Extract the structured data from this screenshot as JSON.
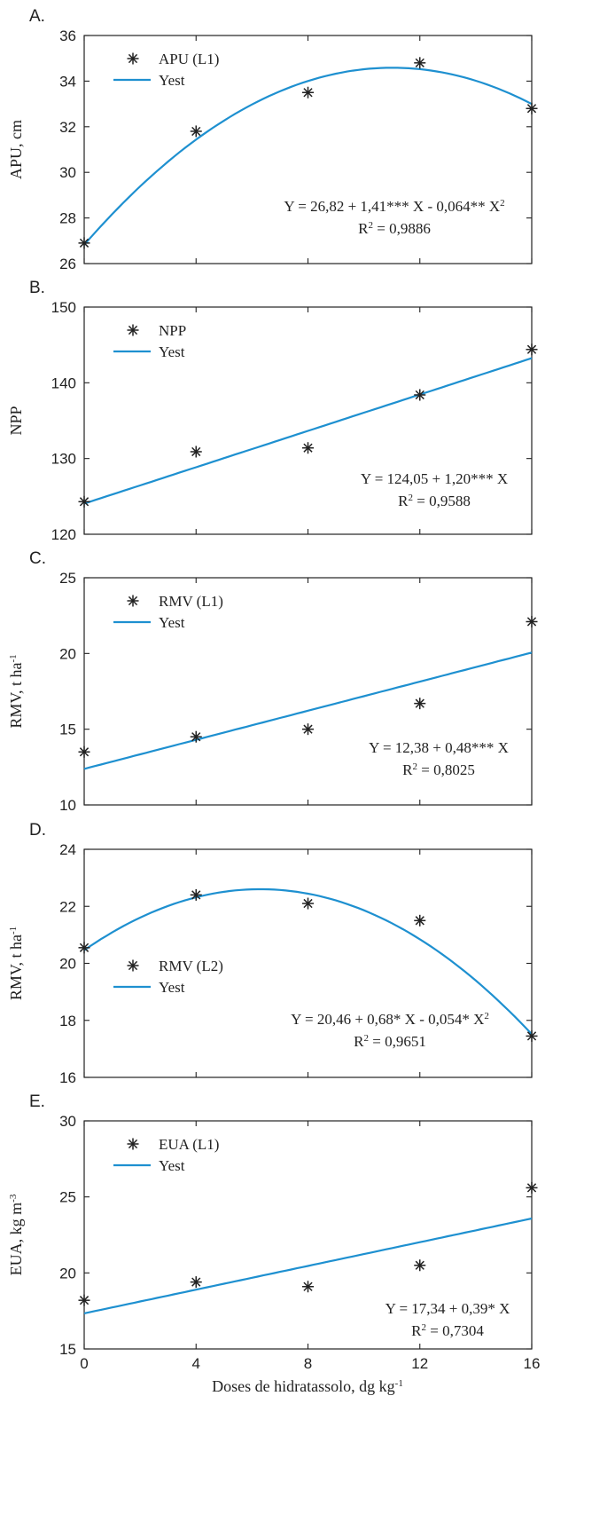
{
  "xlabel": "Doses de hidratassolo, dg kg",
  "xlabel_sup": "-1",
  "x_ticks": [
    "0",
    "4",
    "8",
    "12",
    "16"
  ],
  "colors": {
    "fit_line": "#1e90d0",
    "markers": "#222222"
  },
  "chart_data": [
    {
      "type": "scatter",
      "panel": "A.",
      "ylabel": "APU, cm",
      "ylabel_sup": "",
      "ylim": [
        26,
        36
      ],
      "y_ticks": [
        26,
        28,
        30,
        32,
        34,
        36
      ],
      "x": [
        0,
        4,
        8,
        12,
        16
      ],
      "y": [
        26.9,
        31.8,
        33.5,
        34.8,
        32.8
      ],
      "fit": {
        "type": "quadratic",
        "coef": [
          26.82,
          1.41,
          -0.064
        ]
      },
      "legend": {
        "marker_label": "APU (L1)",
        "line_label": "Yest",
        "placement": "top-left"
      },
      "equation": {
        "line1_a": "Y = 26,82 + 1,41*** X - 0,064** X",
        "line1_sup": "2",
        "line2_a": "R",
        "line2_sup": "2",
        "line2_b": " = 0,9886"
      }
    },
    {
      "type": "scatter",
      "panel": "B.",
      "ylabel": "NPP",
      "ylabel_sup": "",
      "ylim": [
        120,
        150
      ],
      "y_ticks": [
        120,
        130,
        140,
        150
      ],
      "x": [
        0,
        4,
        8,
        12,
        16
      ],
      "y": [
        124.3,
        130.9,
        131.4,
        138.4,
        144.4
      ],
      "fit": {
        "type": "linear",
        "coef": [
          124.05,
          1.2
        ]
      },
      "legend": {
        "marker_label": "NPP",
        "line_label": "Yest",
        "placement": "top-left"
      },
      "equation": {
        "line1_a": "Y = 124,05 + 1,20*** X",
        "line1_sup": "",
        "line2_a": "R",
        "line2_sup": "2",
        "line2_b": " = 0,9588"
      }
    },
    {
      "type": "scatter",
      "panel": "C.",
      "ylabel": "RMV, t ha",
      "ylabel_sup": "-1",
      "ylim": [
        10,
        25
      ],
      "y_ticks": [
        10,
        15,
        20,
        25
      ],
      "x": [
        0,
        4,
        8,
        12,
        16
      ],
      "y": [
        13.5,
        14.5,
        15.0,
        16.7,
        22.1
      ],
      "fit": {
        "type": "linear",
        "coef": [
          12.38,
          0.48
        ]
      },
      "legend": {
        "marker_label": "RMV (L1)",
        "line_label": "Yest",
        "placement": "top-left"
      },
      "equation": {
        "line1_a": "Y = 12,38 + 0,48*** X",
        "line1_sup": "",
        "line2_a": "R",
        "line2_sup": "2",
        "line2_b": " = 0,8025"
      }
    },
    {
      "type": "scatter",
      "panel": "D.",
      "ylabel": "RMV, t ha",
      "ylabel_sup": "-1",
      "ylim": [
        16,
        24
      ],
      "y_ticks": [
        16,
        18,
        20,
        22,
        24
      ],
      "x": [
        0,
        4,
        8,
        12,
        16
      ],
      "y": [
        20.55,
        22.4,
        22.1,
        21.5,
        17.45
      ],
      "fit": {
        "type": "quadratic",
        "coef": [
          20.46,
          0.68,
          -0.054
        ]
      },
      "legend": {
        "marker_label": "RMV (L2)",
        "line_label": "Yest",
        "placement": "center-left"
      },
      "equation": {
        "line1_a": "Y = 20,46 + 0,68* X - 0,054* X",
        "line1_sup": "2",
        "line2_a": "R",
        "line2_sup": "2",
        "line2_b": " = 0,9651"
      }
    },
    {
      "type": "scatter",
      "panel": "E.",
      "ylabel": "EUA, kg m",
      "ylabel_sup": "-3",
      "ylim": [
        15,
        30
      ],
      "y_ticks": [
        15,
        20,
        25,
        30
      ],
      "x": [
        0,
        4,
        8,
        12,
        16
      ],
      "y": [
        18.2,
        19.4,
        19.1,
        20.5,
        25.6
      ],
      "fit": {
        "type": "linear",
        "coef": [
          17.34,
          0.39
        ]
      },
      "legend": {
        "marker_label": "EUA (L1)",
        "line_label": "Yest",
        "placement": "top-left"
      },
      "equation": {
        "line1_a": "Y = 17,34 + 0,39* X",
        "line1_sup": "",
        "line2_a": "R",
        "line2_sup": "2",
        "line2_b": " = 0,7304"
      }
    }
  ]
}
